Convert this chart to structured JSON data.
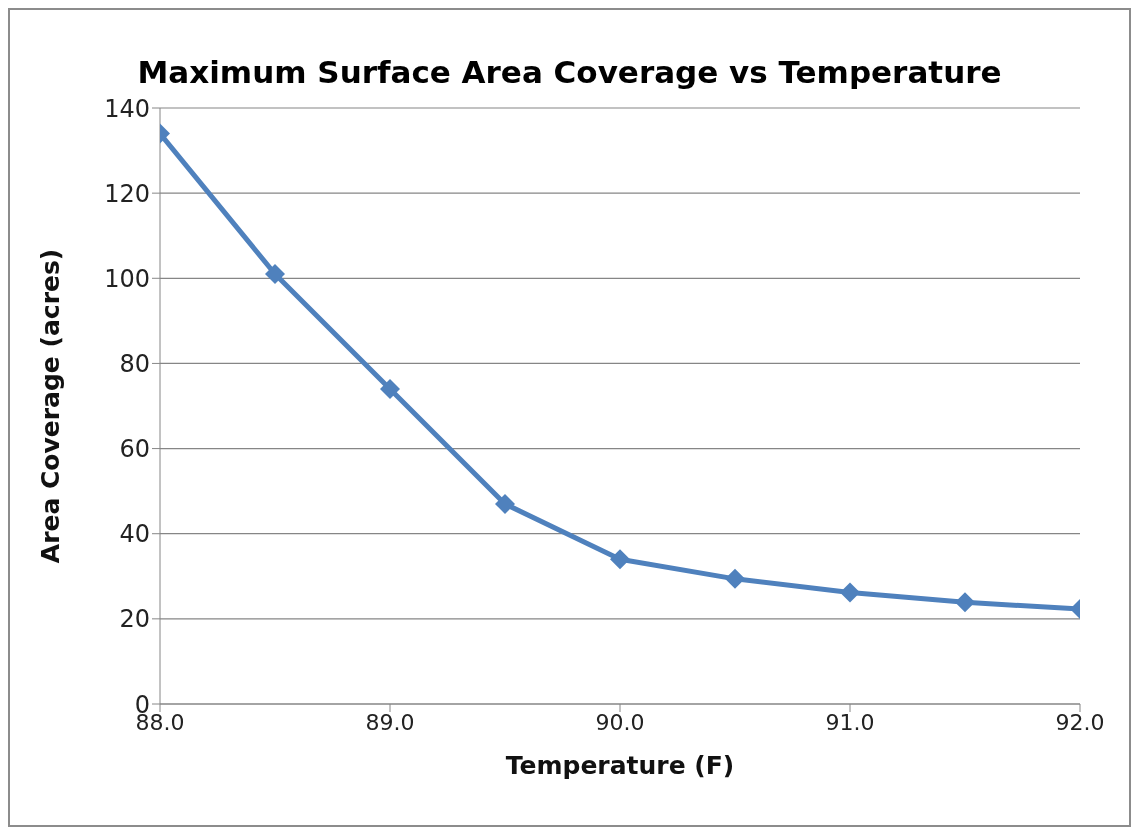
{
  "chart_data": {
    "type": "line",
    "title": "Maximum Surface Area Coverage vs Temperature",
    "xlabel": "Temperature (F)",
    "ylabel": "Area Coverage (acres)",
    "x": [
      88.0,
      88.5,
      89.0,
      89.5,
      90.0,
      90.5,
      91.0,
      91.5,
      92.0
    ],
    "series": [
      {
        "color": "#4f81bd",
        "values": [
          134,
          101,
          74,
          47,
          34,
          29.4,
          26.2,
          23.9,
          22.3
        ]
      }
    ],
    "xlim": [
      88,
      92
    ],
    "xticks": [
      {
        "value": 88,
        "label": "88.0"
      },
      {
        "value": 89,
        "label": "89.0"
      },
      {
        "value": 90,
        "label": "90.0"
      },
      {
        "value": 91,
        "label": "91.0"
      },
      {
        "value": 92,
        "label": "92.0"
      }
    ],
    "ylim": [
      0,
      140
    ],
    "yticks": [
      0,
      20,
      40,
      60,
      80,
      100,
      120,
      140
    ],
    "grid": "y",
    "marker": "diamond",
    "line_style": "solid"
  }
}
